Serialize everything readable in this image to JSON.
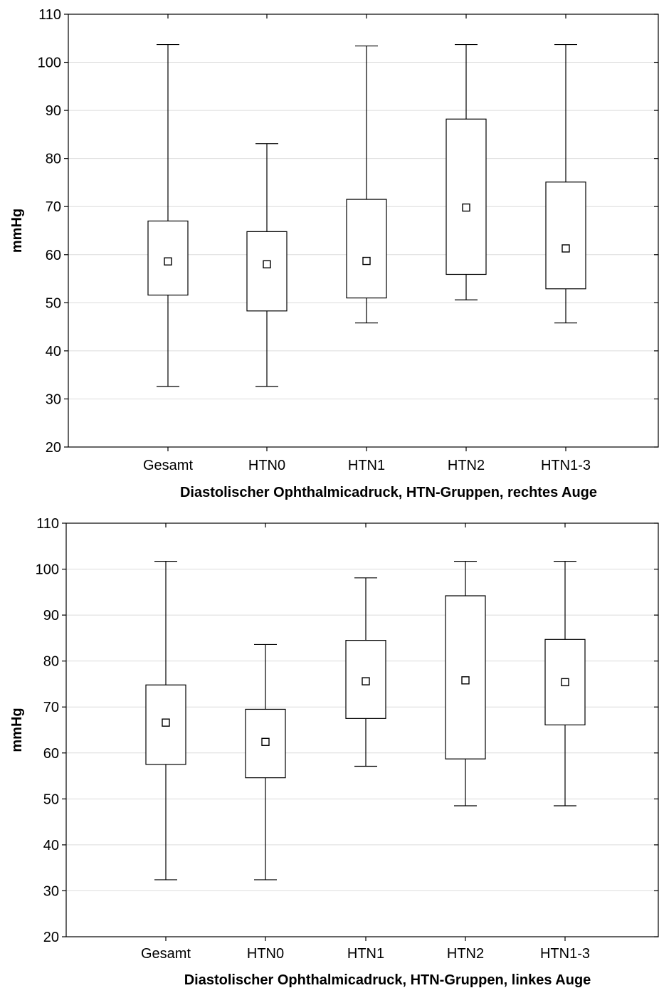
{
  "chart_data": [
    {
      "type": "boxplot",
      "xlabel": "Diastolischer Ophthalmicadruck, HTN-Gruppen, rechtes Auge",
      "ylabel": "mmHg",
      "ylim": [
        20,
        110
      ],
      "yticks": [
        20,
        30,
        40,
        50,
        60,
        70,
        80,
        90,
        100,
        110
      ],
      "grid": "horizontal",
      "categories": [
        "Gesamt",
        "HTN0",
        "HTN1",
        "HTN2",
        "HTN1-3"
      ],
      "boxes": [
        {
          "min": 32.6,
          "q1": 51.6,
          "median": 58.6,
          "q3": 67.0,
          "max": 103.7
        },
        {
          "min": 32.6,
          "q1": 48.3,
          "median": 58.0,
          "q3": 64.8,
          "max": 83.1
        },
        {
          "min": 45.8,
          "q1": 51.0,
          "median": 58.7,
          "q3": 71.5,
          "max": 103.4
        },
        {
          "min": 50.6,
          "q1": 55.9,
          "median": 69.8,
          "q3": 88.2,
          "max": 103.7
        },
        {
          "min": 45.8,
          "q1": 52.9,
          "median": 61.3,
          "q3": 75.1,
          "max": 103.7
        }
      ]
    },
    {
      "type": "boxplot",
      "xlabel": "Diastolischer Ophthalmicadruck, HTN-Gruppen, linkes Auge",
      "ylabel": "mmHg",
      "ylim": [
        20,
        110
      ],
      "yticks": [
        20,
        30,
        40,
        50,
        60,
        70,
        80,
        90,
        100,
        110
      ],
      "grid": "horizontal",
      "categories": [
        "Gesamt",
        "HTN0",
        "HTN1",
        "HTN2",
        "HTN1-3"
      ],
      "boxes": [
        {
          "min": 32.4,
          "q1": 57.5,
          "median": 66.6,
          "q3": 74.8,
          "max": 101.7
        },
        {
          "min": 32.4,
          "q1": 54.6,
          "median": 62.4,
          "q3": 69.5,
          "max": 83.6
        },
        {
          "min": 57.1,
          "q1": 67.5,
          "median": 75.6,
          "q3": 84.5,
          "max": 98.1
        },
        {
          "min": 48.5,
          "q1": 58.7,
          "median": 75.8,
          "q3": 94.2,
          "max": 101.7
        },
        {
          "min": 48.5,
          "q1": 66.1,
          "median": 75.4,
          "q3": 84.7,
          "max": 101.7
        }
      ]
    }
  ]
}
